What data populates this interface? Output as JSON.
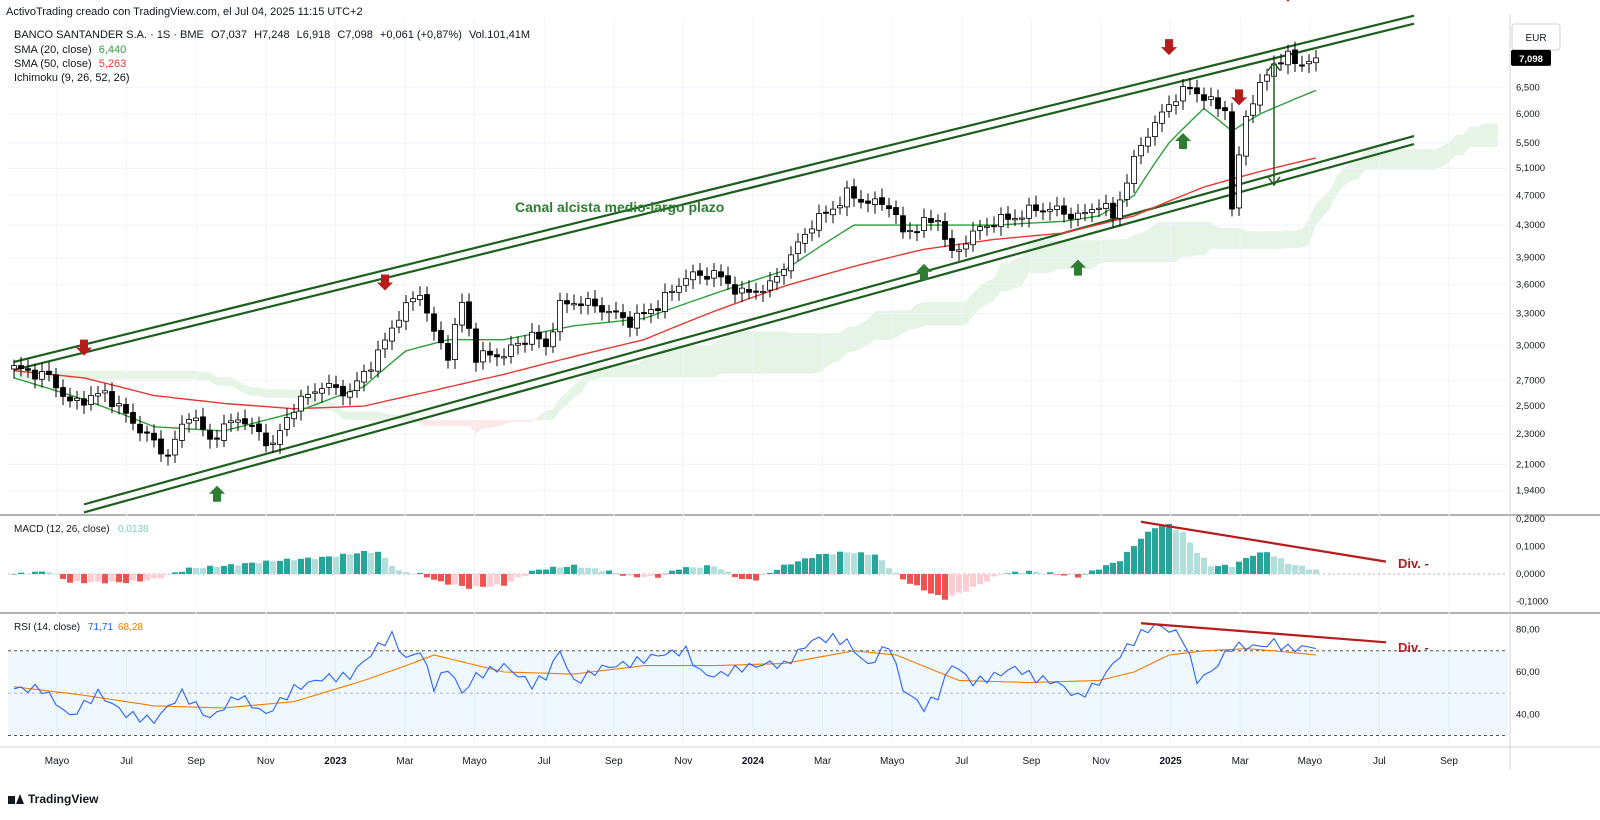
{
  "header": {
    "credit": "ActivoTrading creado con TradingView.com, el Jul 04, 2025 11:15 UTC+2",
    "symbol": "BANCO SANTANDER S.A. · 1S · BME",
    "ohlc": {
      "o": "O7,037",
      "h": "H7,248",
      "l": "L6,918",
      "c": "C7,098",
      "chg": "+0,061 (+0,87%)",
      "vol": "Vol.101,41M"
    },
    "indicators": [
      {
        "label": "SMA (20, close)",
        "value": "6,440",
        "color": "#2e9e3b"
      },
      {
        "label": "SMA (50, close)",
        "value": "5,263",
        "color": "#e53935"
      },
      {
        "label": "Ichimoku (9, 26, 52, 26)",
        "value": "",
        "color": "#131722"
      }
    ]
  },
  "brand": "TradingView",
  "colors": {
    "up": "#ffffff",
    "down": "#000000",
    "sma20": "#2e9e3b",
    "sma50": "#e53935",
    "channel": "#1e5e1e",
    "arrow_up": "#2e7d32",
    "arrow_down": "#b71c1c",
    "macd_up_strong": "#26a69a",
    "macd_up_weak": "#b2dfdb",
    "macd_down_strong": "#ef5350",
    "macd_down_weak": "#ffcdd2",
    "rsi": "#2962ff",
    "rsi_ma": "#f57c00",
    "div": "#b71c1c"
  },
  "chart_data": [
    {
      "type": "candlestick",
      "currency": "EUR",
      "last_price_label": "7,098",
      "y_ticks": [
        "1,9400",
        "2,1000",
        "2,3000",
        "2,5000",
        "2,7000",
        "3,0000",
        "3,3000",
        "3,6000",
        "3,9000",
        "4,3000",
        "4,7000",
        "5,1000",
        "5,500",
        "6,000",
        "6,500"
      ],
      "ylim": [
        1.82,
        8.0
      ],
      "x_tick_labels": [
        "Mayo",
        "Jul",
        "Sep",
        "Nov",
        "2023",
        "Mar",
        "Mayo",
        "Jul",
        "Sep",
        "Nov",
        "2024",
        "Mar",
        "Mayo",
        "Jul",
        "Sep",
        "Nov",
        "2025",
        "Mar",
        "Mayo",
        "Jul",
        "Sep"
      ],
      "annotation": "Canal alcista medio-largo plazo",
      "close_anchors": [
        [
          0,
          2.8
        ],
        [
          5,
          2.73
        ],
        [
          8,
          2.52
        ],
        [
          13,
          2.6
        ],
        [
          17,
          2.38
        ],
        [
          22,
          2.15
        ],
        [
          25,
          2.45
        ],
        [
          28,
          2.26
        ],
        [
          32,
          2.42
        ],
        [
          37,
          2.22
        ],
        [
          40,
          2.5
        ],
        [
          44,
          2.66
        ],
        [
          48,
          2.6
        ],
        [
          52,
          2.92
        ],
        [
          55,
          3.28
        ],
        [
          58,
          3.52
        ],
        [
          60,
          3.1
        ],
        [
          62,
          2.92
        ],
        [
          64,
          3.4
        ],
        [
          66,
          2.9
        ],
        [
          70,
          2.92
        ],
        [
          74,
          3.1
        ],
        [
          76,
          2.98
        ],
        [
          78,
          3.38
        ],
        [
          81,
          3.42
        ],
        [
          84,
          3.35
        ],
        [
          88,
          3.22
        ],
        [
          92,
          3.38
        ],
        [
          96,
          3.68
        ],
        [
          100,
          3.72
        ],
        [
          104,
          3.5
        ],
        [
          108,
          3.58
        ],
        [
          111,
          3.92
        ],
        [
          114,
          4.32
        ],
        [
          117,
          4.52
        ],
        [
          119,
          4.72
        ],
        [
          122,
          4.6
        ],
        [
          125,
          4.58
        ],
        [
          127,
          4.2
        ],
        [
          130,
          4.32
        ],
        [
          132,
          4.38
        ],
        [
          134,
          3.92
        ],
        [
          137,
          4.2
        ],
        [
          140,
          4.35
        ],
        [
          143,
          4.4
        ],
        [
          146,
          4.52
        ],
        [
          149,
          4.5
        ],
        [
          152,
          4.4
        ],
        [
          155,
          4.58
        ],
        [
          157,
          4.42
        ],
        [
          159,
          4.9
        ],
        [
          161,
          5.5
        ],
        [
          163,
          5.8
        ],
        [
          165,
          6.2
        ],
        [
          168,
          6.5
        ],
        [
          171,
          6.2
        ],
        [
          173,
          6.1
        ],
        [
          174,
          4.5
        ],
        [
          176,
          6.0
        ],
        [
          178,
          6.5
        ],
        [
          180,
          7.0
        ],
        [
          182,
          7.1
        ],
        [
          184,
          6.98
        ],
        [
          186,
          7.1
        ]
      ],
      "sma20_anchors": [
        [
          0,
          2.72
        ],
        [
          10,
          2.55
        ],
        [
          20,
          2.35
        ],
        [
          30,
          2.32
        ],
        [
          40,
          2.45
        ],
        [
          50,
          2.65
        ],
        [
          56,
          2.95
        ],
        [
          62,
          3.05
        ],
        [
          70,
          3.05
        ],
        [
          80,
          3.18
        ],
        [
          90,
          3.25
        ],
        [
          100,
          3.5
        ],
        [
          110,
          3.75
        ],
        [
          120,
          4.3
        ],
        [
          130,
          4.3
        ],
        [
          140,
          4.3
        ],
        [
          150,
          4.35
        ],
        [
          155,
          4.42
        ],
        [
          160,
          4.7
        ],
        [
          165,
          5.5
        ],
        [
          170,
          6.1
        ],
        [
          174,
          5.7
        ],
        [
          178,
          6.0
        ],
        [
          186,
          6.44
        ]
      ],
      "sma50_anchors": [
        [
          0,
          2.78
        ],
        [
          10,
          2.72
        ],
        [
          20,
          2.58
        ],
        [
          30,
          2.52
        ],
        [
          40,
          2.48
        ],
        [
          50,
          2.5
        ],
        [
          60,
          2.62
        ],
        [
          70,
          2.75
        ],
        [
          80,
          2.9
        ],
        [
          90,
          3.05
        ],
        [
          100,
          3.32
        ],
        [
          110,
          3.58
        ],
        [
          120,
          3.8
        ],
        [
          130,
          4.0
        ],
        [
          140,
          4.12
        ],
        [
          150,
          4.2
        ],
        [
          160,
          4.42
        ],
        [
          170,
          4.82
        ],
        [
          178,
          5.05
        ],
        [
          186,
          5.26
        ]
      ],
      "channel": {
        "upper_start": [
          0,
          2.82
        ],
        "upper_end": [
          200,
          7.96
        ],
        "lower_start": [
          10,
          1.84
        ],
        "lower_end": [
          200,
          5.55
        ]
      },
      "arrows_down_at": [
        10,
        53,
        165,
        175,
        182
      ],
      "arrows_up_at": [
        29,
        130,
        152,
        167
      ]
    },
    {
      "type": "bar",
      "title": "MACD (12, 26, close)",
      "value": "0,0138",
      "y_ticks": [
        "0,2000",
        "0,1000",
        "0,0000",
        "-0,1000"
      ],
      "ylim": [
        -0.12,
        0.2
      ],
      "divergence_label": "Div. -",
      "hist_anchors": [
        [
          0,
          0.0
        ],
        [
          5,
          0.01
        ],
        [
          8,
          -0.03
        ],
        [
          12,
          -0.03
        ],
        [
          16,
          -0.03
        ],
        [
          20,
          -0.02
        ],
        [
          25,
          0.02
        ],
        [
          30,
          0.03
        ],
        [
          38,
          0.05
        ],
        [
          44,
          0.06
        ],
        [
          50,
          0.08
        ],
        [
          52,
          0.08
        ],
        [
          55,
          0.01
        ],
        [
          58,
          0.0
        ],
        [
          61,
          -0.03
        ],
        [
          65,
          -0.05
        ],
        [
          70,
          -0.04
        ],
        [
          74,
          0.01
        ],
        [
          76,
          0.02
        ],
        [
          80,
          0.03
        ],
        [
          85,
          0.01
        ],
        [
          88,
          -0.01
        ],
        [
          92,
          -0.01
        ],
        [
          95,
          0.02
        ],
        [
          100,
          0.03
        ],
        [
          104,
          -0.02
        ],
        [
          106,
          -0.02
        ],
        [
          110,
          0.03
        ],
        [
          115,
          0.07
        ],
        [
          119,
          0.08
        ],
        [
          123,
          0.07
        ],
        [
          127,
          -0.02
        ],
        [
          131,
          -0.07
        ],
        [
          133,
          -0.09
        ],
        [
          137,
          -0.05
        ],
        [
          141,
          0.0
        ],
        [
          145,
          0.01
        ],
        [
          149,
          0.0
        ],
        [
          152,
          -0.01
        ],
        [
          155,
          0.02
        ],
        [
          158,
          0.05
        ],
        [
          161,
          0.13
        ],
        [
          163,
          0.17
        ],
        [
          165,
          0.18
        ],
        [
          167,
          0.15
        ],
        [
          169,
          0.08
        ],
        [
          171,
          0.03
        ],
        [
          174,
          0.03
        ],
        [
          177,
          0.07
        ],
        [
          179,
          0.08
        ],
        [
          182,
          0.04
        ],
        [
          186,
          0.014
        ]
      ]
    },
    {
      "type": "line",
      "title": "RSI (14, close)",
      "value_rsi": "71,71",
      "value_ma": "68,28",
      "y_ticks": [
        "80,00",
        "60,00",
        "40,00"
      ],
      "ylim": [
        26,
        85
      ],
      "bands": [
        30,
        50,
        70
      ],
      "divergence_label": "Div. -",
      "rsi_anchors": [
        [
          0,
          52
        ],
        [
          4,
          52
        ],
        [
          8,
          39
        ],
        [
          12,
          50
        ],
        [
          16,
          40
        ],
        [
          20,
          37
        ],
        [
          24,
          50
        ],
        [
          28,
          38
        ],
        [
          32,
          49
        ],
        [
          36,
          40
        ],
        [
          40,
          52
        ],
        [
          44,
          57
        ],
        [
          48,
          58
        ],
        [
          52,
          72
        ],
        [
          54,
          77
        ],
        [
          56,
          66
        ],
        [
          58,
          70
        ],
        [
          60,
          53
        ],
        [
          62,
          62
        ],
        [
          64,
          50
        ],
        [
          66,
          58
        ],
        [
          70,
          63
        ],
        [
          74,
          54
        ],
        [
          76,
          58
        ],
        [
          78,
          70
        ],
        [
          80,
          55
        ],
        [
          84,
          62
        ],
        [
          88,
          64
        ],
        [
          92,
          68
        ],
        [
          96,
          70
        ],
        [
          98,
          60
        ],
        [
          100,
          58
        ],
        [
          104,
          62
        ],
        [
          108,
          64
        ],
        [
          110,
          63
        ],
        [
          114,
          75
        ],
        [
          117,
          76
        ],
        [
          119,
          74
        ],
        [
          122,
          63
        ],
        [
          125,
          73
        ],
        [
          127,
          52
        ],
        [
          130,
          43
        ],
        [
          132,
          49
        ],
        [
          134,
          64
        ],
        [
          137,
          55
        ],
        [
          140,
          58
        ],
        [
          143,
          62
        ],
        [
          146,
          57
        ],
        [
          149,
          55
        ],
        [
          152,
          48
        ],
        [
          155,
          55
        ],
        [
          158,
          68
        ],
        [
          161,
          78
        ],
        [
          163,
          82
        ],
        [
          165,
          80
        ],
        [
          167,
          76
        ],
        [
          169,
          56
        ],
        [
          171,
          60
        ],
        [
          174,
          72
        ],
        [
          178,
          72
        ],
        [
          180,
          74
        ],
        [
          182,
          71
        ],
        [
          186,
          72
        ]
      ],
      "ma_anchors": [
        [
          0,
          53
        ],
        [
          10,
          49
        ],
        [
          20,
          44
        ],
        [
          30,
          43
        ],
        [
          40,
          46
        ],
        [
          50,
          56
        ],
        [
          56,
          63
        ],
        [
          60,
          68
        ],
        [
          70,
          60
        ],
        [
          80,
          59
        ],
        [
          90,
          63
        ],
        [
          100,
          63
        ],
        [
          110,
          64
        ],
        [
          120,
          70
        ],
        [
          126,
          68
        ],
        [
          135,
          56
        ],
        [
          145,
          55
        ],
        [
          155,
          56
        ],
        [
          160,
          60
        ],
        [
          165,
          68
        ],
        [
          170,
          70
        ],
        [
          176,
          71
        ],
        [
          180,
          70
        ],
        [
          186,
          68
        ]
      ]
    }
  ]
}
